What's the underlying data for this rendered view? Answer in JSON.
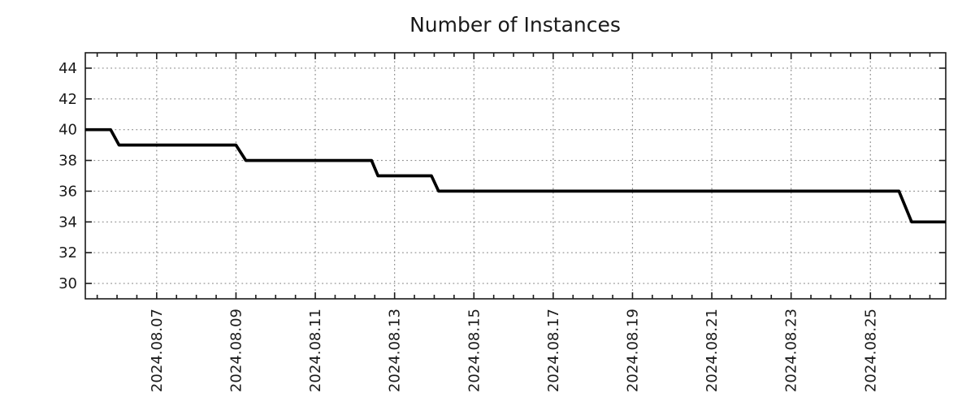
{
  "chart_data": {
    "type": "line",
    "title": "Number of Instances",
    "x_axis": {
      "unit": "date",
      "lim": [
        5.2,
        26.9
      ],
      "major_ticks": [
        {
          "value": 7,
          "label": "2024.08.07"
        },
        {
          "value": 9,
          "label": "2024.08.09"
        },
        {
          "value": 11,
          "label": "2024.08.11"
        },
        {
          "value": 13,
          "label": "2024.08.13"
        },
        {
          "value": 15,
          "label": "2024.08.15"
        },
        {
          "value": 17,
          "label": "2024.08.17"
        },
        {
          "value": 19,
          "label": "2024.08.19"
        },
        {
          "value": 21,
          "label": "2024.08.21"
        },
        {
          "value": 23,
          "label": "2024.08.23"
        },
        {
          "value": 25,
          "label": "2024.08.25"
        }
      ],
      "minor_step": 0.5,
      "label_rotation": -90
    },
    "y_axis": {
      "lim": [
        29,
        45
      ],
      "major_ticks": [
        {
          "value": 30,
          "label": "30"
        },
        {
          "value": 32,
          "label": "32"
        },
        {
          "value": 34,
          "label": "34"
        },
        {
          "value": 36,
          "label": "36"
        },
        {
          "value": 38,
          "label": "38"
        },
        {
          "value": 40,
          "label": "40"
        },
        {
          "value": 42,
          "label": "42"
        },
        {
          "value": 44,
          "label": "44"
        }
      ]
    },
    "grid": {
      "enabled": true,
      "style": "dotted",
      "color": "#8d8d8d"
    },
    "legend": {
      "visible": false
    },
    "series": [
      {
        "name": "instances",
        "color": "#000000",
        "line_width": 3.7,
        "points": [
          [
            5.2,
            40
          ],
          [
            5.84,
            40
          ],
          [
            6.05,
            39
          ],
          [
            9.0,
            39
          ],
          [
            9.25,
            38
          ],
          [
            12.42,
            38
          ],
          [
            12.58,
            37
          ],
          [
            13.93,
            37
          ],
          [
            14.11,
            36
          ],
          [
            25.72,
            36
          ],
          [
            26.04,
            34
          ],
          [
            26.9,
            34
          ]
        ]
      }
    ],
    "colors": {
      "axis": "#1a1a1a",
      "text": "#1a1a1a",
      "background": "#ffffff"
    }
  }
}
